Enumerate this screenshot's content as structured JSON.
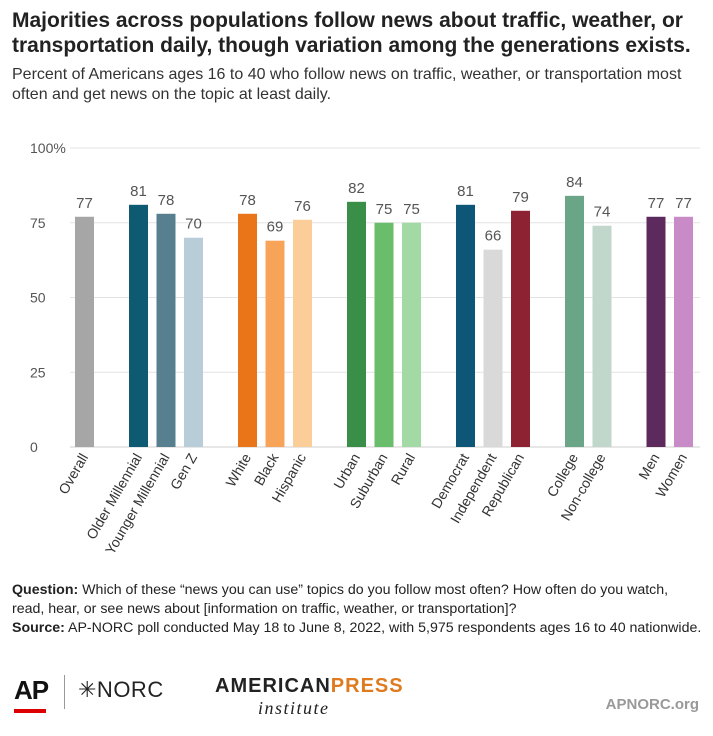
{
  "title": "Majorities across populations follow news about traffic, weather, or transportation daily, though variation among the generations exists.",
  "subtitle": "Percent of Americans ages 16 to 40 who follow news on traffic, weather, or transportation most often and get news on the topic at least daily.",
  "notes": {
    "question_label": "Question:",
    "question_text": " Which of these “news you can use” topics do you follow most often? How often do you watch, read, hear, or see news about [information on traffic, weather, or transportation]?",
    "source_label": "Source:",
    "source_text": " AP-NORC poll conducted May 18 to June 8, 2022, with 5,975 respondents ages 16 to 40 nationwide."
  },
  "footer": {
    "ap": "AP",
    "norc": "✳NORC",
    "api_part1": "AMERICAN",
    "api_part2": "PRESS",
    "api_line2": "institute",
    "site": "APNORC.org"
  },
  "chart_data": {
    "type": "bar",
    "ylim": [
      0,
      100
    ],
    "yticks": [
      {
        "value": 0,
        "label": "0"
      },
      {
        "value": 25,
        "label": "25"
      },
      {
        "value": 50,
        "label": "50"
      },
      {
        "value": 75,
        "label": "75"
      },
      {
        "value": 100,
        "label": "100%"
      }
    ],
    "grid": true,
    "groups": [
      {
        "bars": [
          {
            "label": "Overall",
            "value": 77,
            "color": "#a6a6a6"
          }
        ]
      },
      {
        "bars": [
          {
            "label": "Older Millennial",
            "value": 81,
            "color": "#0f5a73"
          },
          {
            "label": "Younger Millennial",
            "value": 78,
            "color": "#577f90"
          },
          {
            "label": "Gen Z",
            "value": 70,
            "color": "#b9cdd8"
          }
        ]
      },
      {
        "bars": [
          {
            "label": "White",
            "value": 78,
            "color": "#ea7519"
          },
          {
            "label": "Black",
            "value": 69,
            "color": "#f7a458"
          },
          {
            "label": "Hispanic",
            "value": 76,
            "color": "#fbcd98"
          }
        ]
      },
      {
        "bars": [
          {
            "label": "Urban",
            "value": 82,
            "color": "#3a8f48"
          },
          {
            "label": "Suburban",
            "value": 75,
            "color": "#69bd6b"
          },
          {
            "label": "Rural",
            "value": 75,
            "color": "#a2d9a5"
          }
        ]
      },
      {
        "bars": [
          {
            "label": "Democrat",
            "value": 81,
            "color": "#0d5678"
          },
          {
            "label": "Independent",
            "value": 66,
            "color": "#d9d9d9"
          },
          {
            "label": "Republican",
            "value": 79,
            "color": "#8d2233"
          }
        ]
      },
      {
        "bars": [
          {
            "label": "College",
            "value": 84,
            "color": "#6aa587"
          },
          {
            "label": "Non-college",
            "value": 74,
            "color": "#c2d7cb"
          }
        ]
      },
      {
        "bars": [
          {
            "label": "Men",
            "value": 77,
            "color": "#5c2a5c"
          },
          {
            "label": "Women",
            "value": 77,
            "color": "#c88bc8"
          }
        ]
      }
    ]
  }
}
